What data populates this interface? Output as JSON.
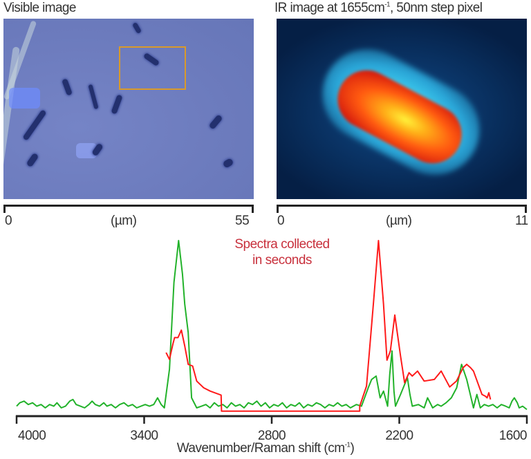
{
  "visible_panel": {
    "title": "Visible image",
    "scale": {
      "start": "0",
      "unit": "(µm)",
      "end": "55"
    }
  },
  "ir_panel": {
    "title_main": "IR image at 1655cm",
    "title_sup": "-1",
    "title_rest": ",  50nm step pixel",
    "scale": {
      "start": "0",
      "unit": "(µm)",
      "end": "11"
    }
  },
  "chart_data": {
    "type": "line",
    "annotation_line1": "Spectra collected",
    "annotation_line2": "in seconds",
    "xlabel": "Wavenumber/Raman shift (cm",
    "xlabel_sup": "-1",
    "xlabel_end": ")",
    "xlim": [
      4000,
      1600
    ],
    "x_reversed": true,
    "xticks": [
      "4000",
      "3400",
      "2800",
      "2200",
      "1600"
    ],
    "ylim": [
      0,
      100
    ],
    "grid": false,
    "colors": {
      "raman": "#22b22a",
      "ir": "#ff1a1a",
      "annotation": "#c8303c"
    },
    "series": [
      {
        "color": "green",
        "points": [
          [
            4000,
            1
          ],
          [
            3985,
            3
          ],
          [
            3965,
            4
          ],
          [
            3945,
            2
          ],
          [
            3925,
            3
          ],
          [
            3905,
            1
          ],
          [
            3885,
            2
          ],
          [
            3865,
            0
          ],
          [
            3845,
            2
          ],
          [
            3825,
            1
          ],
          [
            3810,
            3
          ],
          [
            3790,
            0
          ],
          [
            3770,
            1
          ],
          [
            3750,
            4
          ],
          [
            3735,
            5
          ],
          [
            3720,
            2
          ],
          [
            3700,
            1
          ],
          [
            3680,
            0
          ],
          [
            3660,
            2
          ],
          [
            3645,
            4
          ],
          [
            3630,
            2
          ],
          [
            3610,
            1
          ],
          [
            3590,
            3
          ],
          [
            3575,
            1
          ],
          [
            3555,
            2
          ],
          [
            3535,
            0
          ],
          [
            3515,
            2
          ],
          [
            3495,
            3
          ],
          [
            3475,
            1
          ],
          [
            3455,
            2
          ],
          [
            3435,
            0
          ],
          [
            3415,
            1
          ],
          [
            3395,
            2
          ],
          [
            3375,
            1
          ],
          [
            3355,
            2
          ],
          [
            3337,
            6
          ],
          [
            3320,
            2
          ],
          [
            3305,
            0
          ],
          [
            3281,
            23
          ],
          [
            3260,
            75
          ],
          [
            3238,
            100
          ],
          [
            3220,
            80
          ],
          [
            3209,
            62
          ],
          [
            3193,
            45
          ],
          [
            3177,
            6
          ],
          [
            3153,
            0
          ],
          [
            3130,
            1
          ],
          [
            3110,
            2
          ],
          [
            3090,
            0
          ],
          [
            3070,
            3
          ],
          [
            3050,
            1
          ],
          [
            3030,
            2
          ],
          [
            3010,
            0
          ],
          [
            2990,
            3
          ],
          [
            2970,
            1
          ],
          [
            2950,
            2
          ],
          [
            2930,
            0
          ],
          [
            2910,
            3
          ],
          [
            2890,
            2
          ],
          [
            2870,
            4
          ],
          [
            2850,
            1
          ],
          [
            2830,
            3
          ],
          [
            2810,
            0
          ],
          [
            2790,
            2
          ],
          [
            2770,
            1
          ],
          [
            2750,
            3
          ],
          [
            2730,
            0
          ],
          [
            2710,
            2
          ],
          [
            2690,
            1
          ],
          [
            2670,
            3
          ],
          [
            2650,
            0
          ],
          [
            2630,
            2
          ],
          [
            2610,
            1
          ],
          [
            2590,
            3
          ],
          [
            2570,
            2
          ],
          [
            2550,
            0
          ],
          [
            2530,
            2
          ],
          [
            2510,
            1
          ],
          [
            2490,
            3
          ],
          [
            2470,
            1
          ],
          [
            2450,
            2
          ],
          [
            2430,
            0
          ],
          [
            2402,
            2
          ],
          [
            2378,
            1
          ],
          [
            2346,
            12
          ],
          [
            2330,
            17
          ],
          [
            2309,
            19
          ],
          [
            2290,
            6
          ],
          [
            2274,
            10
          ],
          [
            2255,
            1
          ],
          [
            2245,
            20
          ],
          [
            2234,
            34
          ],
          [
            2225,
            10
          ],
          [
            2218,
            1
          ],
          [
            2194,
            8
          ],
          [
            2162,
            18
          ],
          [
            2150,
            8
          ],
          [
            2139,
            1
          ],
          [
            2110,
            2
          ],
          [
            2083,
            0
          ],
          [
            2067,
            6
          ],
          [
            2043,
            0
          ],
          [
            2020,
            2
          ],
          [
            2003,
            1
          ],
          [
            1980,
            3
          ],
          [
            1955,
            6
          ],
          [
            1930,
            12
          ],
          [
            1907,
            26
          ],
          [
            1883,
            17
          ],
          [
            1851,
            0
          ],
          [
            1835,
            8
          ],
          [
            1819,
            0
          ],
          [
            1800,
            2
          ],
          [
            1780,
            1
          ],
          [
            1760,
            2
          ],
          [
            1740,
            0
          ],
          [
            1720,
            2
          ],
          [
            1700,
            1
          ],
          [
            1683,
            0
          ],
          [
            1670,
            4
          ],
          [
            1659,
            6
          ],
          [
            1645,
            3
          ],
          [
            1636,
            0
          ],
          [
            1620,
            1
          ],
          [
            1600,
            -1
          ]
        ]
      },
      {
        "color": "red",
        "points": [
          [
            3297,
            33
          ],
          [
            3281,
            29
          ],
          [
            3265,
            38
          ],
          [
            3257,
            42
          ],
          [
            3241,
            42
          ],
          [
            3225,
            46.5
          ],
          [
            3209,
            37
          ],
          [
            3193,
            26
          ],
          [
            3172,
            25
          ],
          [
            3153,
            16
          ],
          [
            3120,
            12
          ],
          [
            3089,
            10
          ],
          [
            3038,
            7.6
          ],
          [
            3036,
            -2
          ],
          [
            2386,
            -2
          ],
          [
            2386,
            1
          ],
          [
            2354,
            13
          ],
          [
            2322,
            62
          ],
          [
            2298,
            100
          ],
          [
            2274,
            62
          ],
          [
            2258,
            28.5
          ],
          [
            2242,
            34
          ],
          [
            2221,
            55.5
          ],
          [
            2194,
            31
          ],
          [
            2175,
            15
          ],
          [
            2154,
            21
          ],
          [
            2139,
            19
          ],
          [
            2114,
            22
          ],
          [
            2083,
            16
          ],
          [
            2035,
            17
          ],
          [
            2003,
            22
          ],
          [
            1963,
            12.5
          ],
          [
            1931,
            16
          ],
          [
            1900,
            24
          ],
          [
            1883,
            26
          ],
          [
            1865,
            24
          ],
          [
            1851,
            22
          ],
          [
            1811,
            8
          ],
          [
            1795,
            7
          ],
          [
            1787,
            6
          ],
          [
            1779,
            9
          ],
          [
            1771,
            5
          ]
        ]
      }
    ]
  }
}
